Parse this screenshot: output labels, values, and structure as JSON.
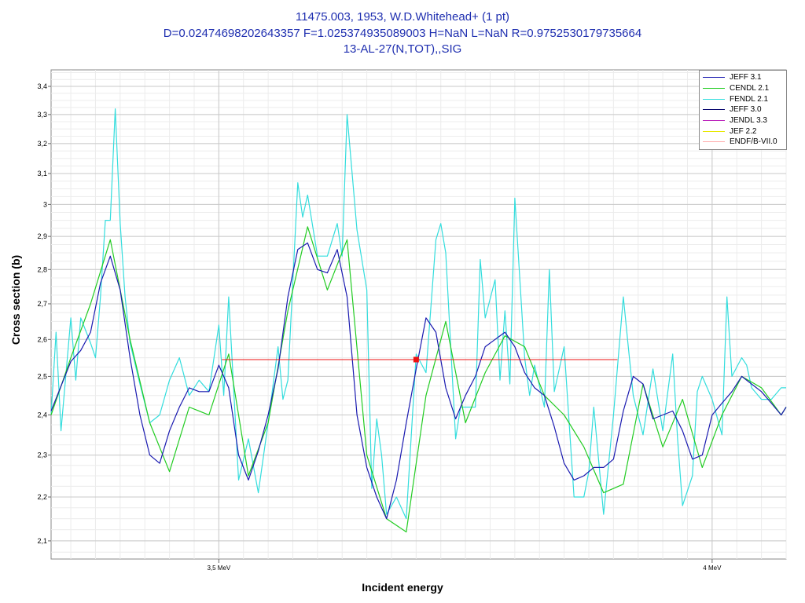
{
  "chart_data": {
    "type": "line",
    "title_lines": [
      "11475.003, 1953, W.D.Whitehead+ (1 pt)",
      "D=0.02474698202643357 F=1.025374935089003 H=NaN L=NaN R=0.9752530179735664",
      "13-AL-27(N,TOT),,SIG"
    ],
    "xlabel": "Incident energy",
    "ylabel": "Cross section (b)",
    "xlim": [
      3.33,
      4.075
    ],
    "ylim": [
      2.06,
      3.46
    ],
    "log_y": true,
    "grid": true,
    "legend_position": "top-right",
    "x_ticks": [
      {
        "value": 3.5,
        "label": "3,5 MeV"
      },
      {
        "value": 4.0,
        "label": "4 MeV"
      }
    ],
    "y_ticks": [
      {
        "value": 2.1,
        "label": "2,1"
      },
      {
        "value": 2.2,
        "label": "2,2"
      },
      {
        "value": 2.3,
        "label": "2,3"
      },
      {
        "value": 2.4,
        "label": "2,4"
      },
      {
        "value": 2.5,
        "label": "2,5"
      },
      {
        "value": 2.6,
        "label": "2,6"
      },
      {
        "value": 2.7,
        "label": "2,7"
      },
      {
        "value": 2.8,
        "label": "2,8"
      },
      {
        "value": 2.9,
        "label": "2,9"
      },
      {
        "value": 3.0,
        "label": "3"
      },
      {
        "value": 3.1,
        "label": "3,1"
      },
      {
        "value": 3.2,
        "label": "3,2"
      },
      {
        "value": 3.3,
        "label": "3,3"
      },
      {
        "value": 3.4,
        "label": "3,4"
      }
    ],
    "experimental_point": {
      "x": 3.7,
      "y": 2.545,
      "x_err": [
        3.503,
        3.904
      ]
    },
    "series": [
      {
        "name": "JEFF 3.1",
        "color": "#1a1ab0",
        "x": [
          3.33,
          3.35,
          3.36,
          3.37,
          3.38,
          3.39,
          3.4,
          3.41,
          3.42,
          3.43,
          3.44,
          3.45,
          3.46,
          3.47,
          3.48,
          3.49,
          3.5,
          3.51,
          3.52,
          3.53,
          3.54,
          3.55,
          3.56,
          3.57,
          3.58,
          3.59,
          3.6,
          3.61,
          3.62,
          3.63,
          3.64,
          3.65,
          3.66,
          3.67,
          3.68,
          3.69,
          3.7,
          3.71,
          3.72,
          3.73,
          3.74,
          3.75,
          3.76,
          3.77,
          3.78,
          3.79,
          3.8,
          3.81,
          3.82,
          3.83,
          3.84,
          3.85,
          3.86,
          3.87,
          3.88,
          3.89,
          3.9,
          3.91,
          3.92,
          3.93,
          3.94,
          3.95,
          3.96,
          3.97,
          3.98,
          3.99,
          4.0,
          4.01,
          4.02,
          4.03,
          4.04,
          4.05,
          4.06,
          4.07,
          4.075
        ],
        "y": [
          2.41,
          2.54,
          2.57,
          2.62,
          2.76,
          2.84,
          2.74,
          2.55,
          2.4,
          2.3,
          2.28,
          2.36,
          2.42,
          2.47,
          2.46,
          2.46,
          2.53,
          2.47,
          2.3,
          2.24,
          2.31,
          2.4,
          2.52,
          2.72,
          2.86,
          2.88,
          2.8,
          2.79,
          2.86,
          2.72,
          2.4,
          2.27,
          2.2,
          2.15,
          2.24,
          2.38,
          2.52,
          2.66,
          2.62,
          2.47,
          2.39,
          2.45,
          2.5,
          2.58,
          2.6,
          2.62,
          2.58,
          2.51,
          2.47,
          2.45,
          2.37,
          2.28,
          2.24,
          2.25,
          2.27,
          2.27,
          2.29,
          2.41,
          2.5,
          2.48,
          2.39,
          2.4,
          2.41,
          2.36,
          2.29,
          2.3,
          2.4,
          2.43,
          2.46,
          2.5,
          2.48,
          2.46,
          2.43,
          2.4,
          2.42
        ]
      },
      {
        "name": "CENDL 2.1",
        "color": "#22cc22",
        "x": [
          3.33,
          3.35,
          3.37,
          3.39,
          3.41,
          3.43,
          3.45,
          3.47,
          3.49,
          3.51,
          3.53,
          3.55,
          3.57,
          3.59,
          3.61,
          3.63,
          3.65,
          3.67,
          3.69,
          3.71,
          3.73,
          3.75,
          3.77,
          3.79,
          3.81,
          3.83,
          3.85,
          3.87,
          3.89,
          3.91,
          3.93,
          3.95,
          3.97,
          3.99,
          4.01,
          4.03,
          4.05,
          4.07,
          4.075
        ],
        "y": [
          2.4,
          2.55,
          2.7,
          2.89,
          2.6,
          2.38,
          2.26,
          2.42,
          2.4,
          2.56,
          2.25,
          2.38,
          2.68,
          2.93,
          2.74,
          2.89,
          2.3,
          2.15,
          2.12,
          2.45,
          2.65,
          2.38,
          2.51,
          2.61,
          2.58,
          2.45,
          2.4,
          2.32,
          2.21,
          2.23,
          2.48,
          2.32,
          2.44,
          2.27,
          2.4,
          2.5,
          2.47,
          2.4,
          2.42
        ]
      },
      {
        "name": "FENDL 2.1",
        "color": "#33dddd",
        "x": [
          3.33,
          3.335,
          3.34,
          3.35,
          3.355,
          3.36,
          3.37,
          3.375,
          3.38,
          3.385,
          3.39,
          3.395,
          3.4,
          3.405,
          3.41,
          3.42,
          3.43,
          3.44,
          3.45,
          3.46,
          3.47,
          3.48,
          3.49,
          3.5,
          3.505,
          3.51,
          3.52,
          3.53,
          3.54,
          3.55,
          3.56,
          3.565,
          3.57,
          3.58,
          3.585,
          3.59,
          3.6,
          3.605,
          3.61,
          3.62,
          3.625,
          3.63,
          3.64,
          3.65,
          3.655,
          3.66,
          3.665,
          3.67,
          3.68,
          3.69,
          3.7,
          3.71,
          3.72,
          3.725,
          3.73,
          3.74,
          3.745,
          3.75,
          3.76,
          3.765,
          3.77,
          3.78,
          3.785,
          3.79,
          3.795,
          3.8,
          3.81,
          3.815,
          3.82,
          3.83,
          3.835,
          3.84,
          3.85,
          3.86,
          3.87,
          3.875,
          3.88,
          3.89,
          3.9,
          3.91,
          3.915,
          3.92,
          3.93,
          3.94,
          3.95,
          3.96,
          3.965,
          3.97,
          3.98,
          3.985,
          3.99,
          4.0,
          4.01,
          4.015,
          4.02,
          4.03,
          4.035,
          4.04,
          4.05,
          4.06,
          4.07,
          4.075
        ],
        "y": [
          2.4,
          2.62,
          2.36,
          2.66,
          2.49,
          2.66,
          2.59,
          2.55,
          2.72,
          2.95,
          2.95,
          3.32,
          2.94,
          2.72,
          2.59,
          2.48,
          2.38,
          2.4,
          2.49,
          2.55,
          2.45,
          2.49,
          2.46,
          2.64,
          2.45,
          2.72,
          2.24,
          2.34,
          2.21,
          2.38,
          2.58,
          2.44,
          2.49,
          3.07,
          2.96,
          3.03,
          2.84,
          2.84,
          2.84,
          2.94,
          2.84,
          3.3,
          2.92,
          2.74,
          2.22,
          2.39,
          2.3,
          2.16,
          2.2,
          2.15,
          2.56,
          2.51,
          2.89,
          2.94,
          2.85,
          2.34,
          2.42,
          2.42,
          2.42,
          2.83,
          2.66,
          2.77,
          2.49,
          2.68,
          2.48,
          3.02,
          2.55,
          2.45,
          2.53,
          2.42,
          2.8,
          2.46,
          2.58,
          2.2,
          2.2,
          2.26,
          2.42,
          2.16,
          2.4,
          2.72,
          2.58,
          2.45,
          2.35,
          2.52,
          2.36,
          2.56,
          2.34,
          2.18,
          2.25,
          2.46,
          2.5,
          2.44,
          2.35,
          2.72,
          2.5,
          2.55,
          2.53,
          2.47,
          2.44,
          2.44,
          2.47,
          2.47
        ]
      },
      {
        "name": "JEFF 3.0",
        "color": "#00006a",
        "x": [],
        "y": []
      },
      {
        "name": "JENDL 3.3",
        "color": "#bb22bb",
        "x": [],
        "y": []
      },
      {
        "name": "JEF 2.2",
        "color": "#e8e800",
        "x": [],
        "y": []
      },
      {
        "name": "ENDF/B-VII.0",
        "color": "#ffaaaa",
        "x": [],
        "y": []
      }
    ]
  }
}
